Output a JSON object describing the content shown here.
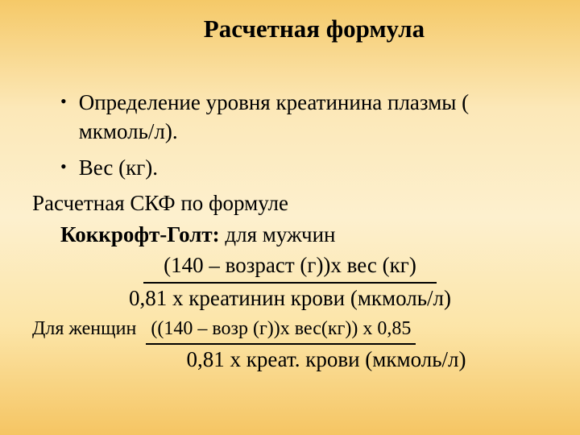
{
  "title": "Расчетная формула",
  "bullets": [
    "Определение уровня креатинина плазмы ( мкмоль/л).",
    "Вес (кг)."
  ],
  "line1_prefix": "Расчетная СКФ по формуле",
  "line2_bold": "Коккрофт-Голт: ",
  "line2_rest": "для мужчин",
  "formula_men_num": "(140 – возраст (г))х вес (кг)",
  "formula_men_denom": "0,81 х креатинин крови (мкмоль/л)",
  "women_prefix": "Для женщин",
  "formula_women_num": "((140 – возр (г))х вес(кг)) х 0,85",
  "formula_women_denom": "0,81 х креат. крови (мкмоль/л)",
  "bullet_char": "•",
  "font_family": "Times New Roman",
  "colors": {
    "text": "#000000",
    "bg_top": "#f5c968",
    "bg_mid": "#fdf0ce",
    "bg_bottom": "#f5c563"
  }
}
